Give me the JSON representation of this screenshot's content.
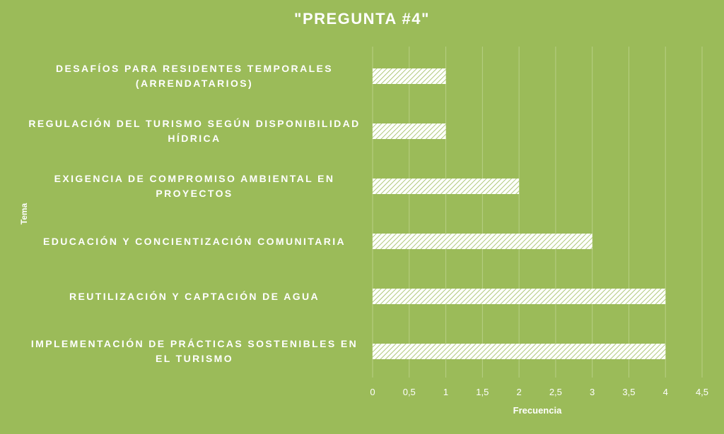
{
  "chart_data": {
    "type": "bar",
    "orientation": "horizontal",
    "title": "\"PREGUNTA #4\"",
    "xlabel": "Frecuencia",
    "ylabel": "Tema",
    "categories": [
      "IMPLEMENTACIÓN DE PRÁCTICAS SOSTENIBLES EN EL TURISMO",
      "REUTILIZACIÓN Y CAPTACIÓN DE AGUA",
      "EDUCACIÓN Y CONCIENTIZACIÓN COMUNITARIA",
      "EXIGENCIA DE COMPROMISO AMBIENTAL EN PROYECTOS",
      "REGULACIÓN DEL TURISMO SEGÚN DISPONIBILIDAD HÍDRICA",
      "DESAFÍOS PARA RESIDENTES TEMPORALES (ARRENDATARIOS)"
    ],
    "values": [
      4,
      4,
      3,
      2,
      1,
      1
    ],
    "xlim": [
      0,
      4.5
    ],
    "x_ticks": [
      "0",
      "0,5",
      "1",
      "1,5",
      "2",
      "2,5",
      "3",
      "3,5",
      "4",
      "4,5"
    ],
    "grid": true,
    "legend": "none",
    "background_color": "#9bbb59",
    "bar_fill": "hatched white diagonal",
    "text_color": "#ffffff"
  }
}
